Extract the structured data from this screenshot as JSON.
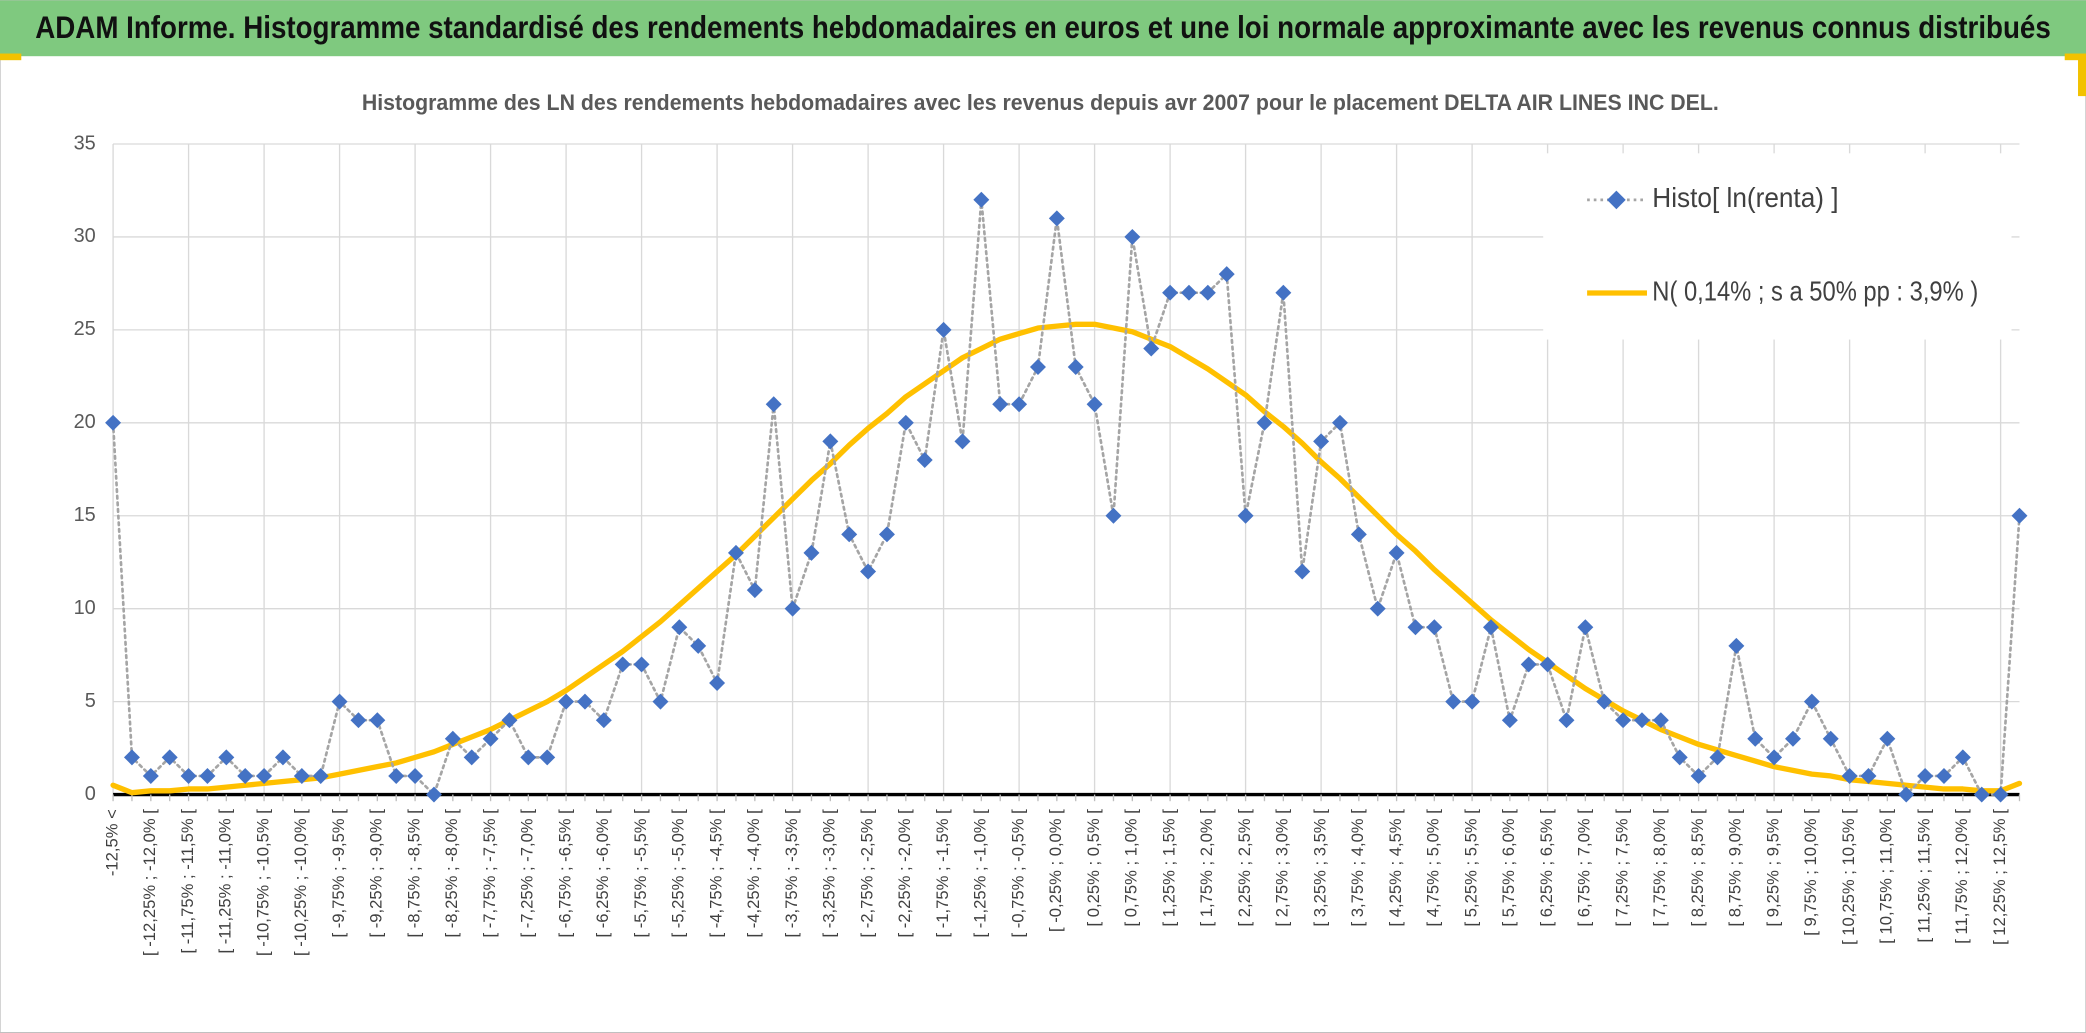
{
  "chart_data": {
    "type": "line",
    "title": "ADAM Informe. Histogramme standardisé des rendements hebdomadaires en euros et une loi normale approximante avec les revenus connus distribués",
    "subtitle": "Histogramme des LN des rendements hebdomadaires avec les revenus depuis avr 2007 pour le placement DELTA AIR LINES INC DEL.",
    "categories": [
      "-12,5% <",
      null,
      "[ -12,25% ; -12,0% [",
      null,
      "[ -11,75% ; -11,5% [",
      null,
      "[ -11,25% ; -11,0% [",
      null,
      "[ -10,75% ; -10,5% [",
      null,
      "[ -10,25% ; -10,0% [",
      null,
      "[ -9,75% ; -9,5% [",
      null,
      "[ -9,25% ; -9,0% [",
      null,
      "[ -8,75% ; -8,5% [",
      null,
      "[ -8,25% ; -8,0% [",
      null,
      "[ -7,75% ; -7,5% [",
      null,
      "[ -7,25% ; -7,0% [",
      null,
      "[ -6,75% ; -6,5% [",
      null,
      "[ -6,25% ; -6,0% [",
      null,
      "[ -5,75% ; -5,5% [",
      null,
      "[ -5,25% ; -5,0% [",
      null,
      "[ -4,75% ; -4,5% [",
      null,
      "[ -4,25% ; -4,0% [",
      null,
      "[ -3,75% ; -3,5% [",
      null,
      "[ -3,25% ; -3,0% [",
      null,
      "[ -2,75% ; -2,5% [",
      null,
      "[ -2,25% ; -2,0% [",
      null,
      "[ -1,75% ; -1,5% [",
      null,
      "[ -1,25% ; -1,0% [",
      null,
      "[ -0,75% ; -0,5% [",
      null,
      "[ -0,25% ; 0,0% [",
      null,
      "[ 0,25% ; 0,5% [",
      null,
      "[ 0,75% ; 1,0% [",
      null,
      "[ 1,25% ; 1,5% [",
      null,
      "[ 1,75% ; 2,0% [",
      null,
      "[ 2,25% ; 2,5% [",
      null,
      "[ 2,75% ; 3,0% [",
      null,
      "[ 3,25% ; 3,5% [",
      null,
      "[ 3,75% ; 4,0% [",
      null,
      "[ 4,25% ; 4,5% [",
      null,
      "[ 4,75% ; 5,0% [",
      null,
      "[ 5,25% ; 5,5% [",
      null,
      "[ 5,75% ; 6,0% [",
      null,
      "[ 6,25% ; 6,5% [",
      null,
      "[ 6,75% ; 7,0% [",
      null,
      "[ 7,25% ; 7,5% [",
      null,
      "[ 7,75% ; 8,0% [",
      null,
      "[ 8,25% ; 8,5% [",
      null,
      "[ 8,75% ; 9,0% [",
      null,
      "[ 9,25% ; 9,5% [",
      null,
      "[ 9,75% ; 10,0% [",
      null,
      "[ 10,25% ; 10,5% [",
      null,
      "[ 10,75% ; 11,0% [",
      null,
      "[ 11,25% ; 11,5% [",
      null,
      "[ 11,75% ; 12,0% [",
      null,
      "[ 12,25% ; 12,5% [",
      null
    ],
    "series": [
      {
        "name": "Histo[ ln(renta) ]",
        "color": "#4472c4",
        "line_color": "#a5a5a5",
        "line_style": "dotted",
        "marker": "diamond",
        "values": [
          20,
          2,
          1,
          2,
          1,
          1,
          2,
          1,
          1,
          2,
          1,
          1,
          5,
          4,
          4,
          1,
          1,
          0,
          3,
          2,
          3,
          4,
          2,
          2,
          5,
          5,
          4,
          7,
          7,
          5,
          9,
          8,
          6,
          13,
          11,
          21,
          10,
          13,
          19,
          14,
          12,
          14,
          20,
          18,
          25,
          19,
          32,
          21,
          21,
          23,
          31,
          23,
          21,
          15,
          30,
          24,
          27,
          27,
          27,
          28,
          15,
          20,
          27,
          12,
          19,
          20,
          14,
          10,
          13,
          9,
          9,
          5,
          5,
          9,
          4,
          7,
          7,
          4,
          9,
          5,
          4,
          4,
          4,
          2,
          1,
          2,
          8,
          3,
          2,
          3,
          5,
          3,
          1,
          1,
          3,
          0,
          1,
          1,
          2,
          0,
          0,
          15
        ]
      },
      {
        "name": "N( 0,14% ; s a 50% pp : 3,9% )",
        "color": "#ffc000",
        "line_style": "solid",
        "marker": "none",
        "values": [
          0.5,
          0.1,
          0.2,
          0.2,
          0.3,
          0.3,
          0.4,
          0.5,
          0.6,
          0.7,
          0.8,
          0.9,
          1.1,
          1.3,
          1.5,
          1.7,
          2.0,
          2.3,
          2.7,
          3.1,
          3.5,
          4.0,
          4.5,
          5.0,
          5.6,
          6.3,
          7.0,
          7.7,
          8.5,
          9.3,
          10.2,
          11.1,
          12.0,
          12.9,
          13.9,
          14.9,
          15.9,
          16.9,
          17.8,
          18.8,
          19.7,
          20.5,
          21.4,
          22.1,
          22.8,
          23.5,
          24.0,
          24.5,
          24.8,
          25.1,
          25.2,
          25.3,
          25.3,
          25.1,
          24.9,
          24.5,
          24.1,
          23.5,
          22.9,
          22.2,
          21.5,
          20.6,
          19.8,
          18.9,
          17.9,
          17.0,
          16.0,
          15.0,
          14.0,
          13.1,
          12.1,
          11.2,
          10.3,
          9.4,
          8.6,
          7.8,
          7.1,
          6.4,
          5.7,
          5.1,
          4.5,
          4.0,
          3.5,
          3.1,
          2.7,
          2.4,
          2.1,
          1.8,
          1.5,
          1.3,
          1.1,
          1.0,
          0.8,
          0.7,
          0.6,
          0.5,
          0.4,
          0.3,
          0.3,
          0.2,
          0.2,
          0.6
        ]
      }
    ],
    "ylim": [
      0,
      35
    ],
    "yticks": [
      0,
      5,
      10,
      15,
      20,
      25,
      30,
      35
    ],
    "grid": true,
    "legend": "top-right"
  }
}
